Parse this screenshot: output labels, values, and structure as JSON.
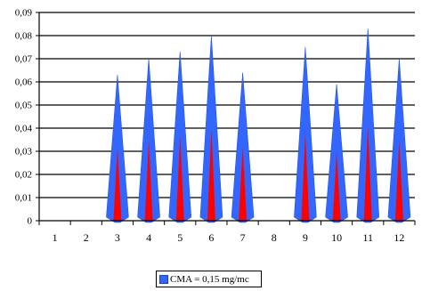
{
  "chart_data": {
    "type": "bar",
    "categories": [
      "1",
      "2",
      "3",
      "4",
      "5",
      "6",
      "7",
      "8",
      "9",
      "10",
      "11",
      "12"
    ],
    "series": [
      {
        "name": "CMA = 0,15 mg/mc",
        "values": [
          0,
          0,
          0.063,
          0.07,
          0.073,
          0.08,
          0.064,
          0,
          0.075,
          0.059,
          0.083,
          0.07
        ]
      }
    ],
    "yticks": [
      "0",
      "0,01",
      "0,02",
      "0,03",
      "0,04",
      "0,05",
      "0,06",
      "0,07",
      "0,08",
      "0,09"
    ],
    "ylim": [
      0,
      0.09
    ],
    "grid": true,
    "legend": "bottom",
    "colors": {
      "primary": "#3366FF",
      "accent": "#FF0000"
    }
  }
}
